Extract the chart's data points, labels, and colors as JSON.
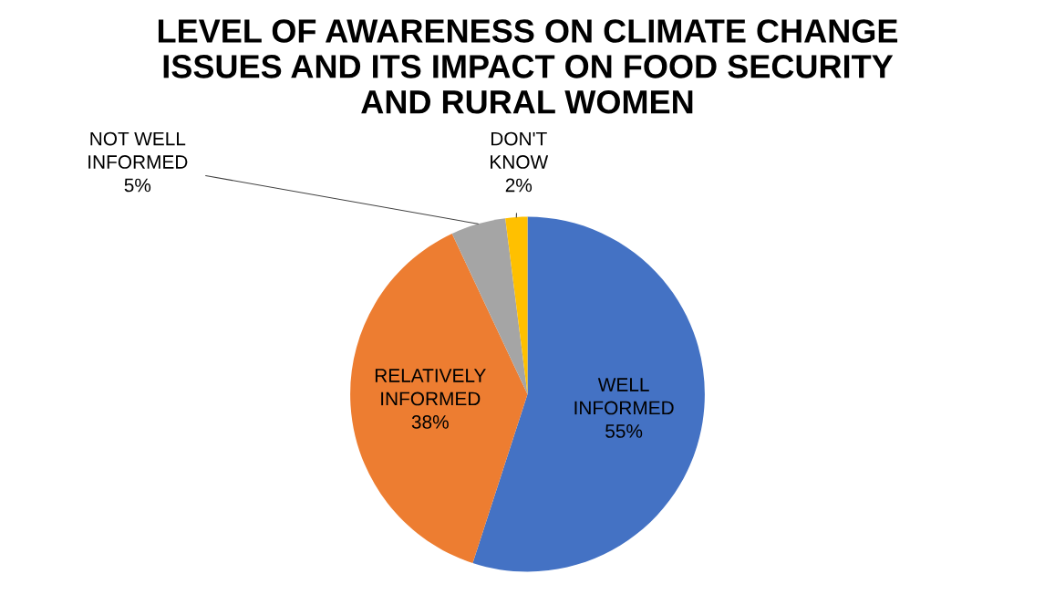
{
  "chart_data": {
    "type": "pie",
    "title": "LEVEL OF AWARENESS ON CLIMATE CHANGE\nISSUES AND ITS IMPACT ON FOOD SECURITY\nAND RURAL WOMEN",
    "categories": [
      "WELL INFORMED",
      "RELATIVELY INFORMED",
      "NOT WELL INFORMED",
      "DON'T KNOW"
    ],
    "values": [
      55,
      38,
      5,
      2
    ],
    "colors": [
      "#4472c4",
      "#ed7d31",
      "#a5a5a5",
      "#ffc000"
    ],
    "value_labels": [
      "55%",
      "38%",
      "5%",
      "2%"
    ]
  }
}
